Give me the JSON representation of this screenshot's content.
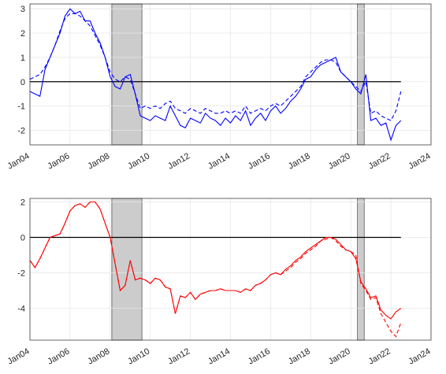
{
  "chart_data": [
    {
      "type": "line",
      "grid": true,
      "reference_line": 0,
      "xlim": [
        "2004-01",
        "2024-01"
      ],
      "xticks": [
        {
          "value": "2004-01",
          "label": "Jan04"
        },
        {
          "value": "2006-01",
          "label": "Jan06"
        },
        {
          "value": "2008-01",
          "label": "Jan08"
        },
        {
          "value": "2010-01",
          "label": "Jan10"
        },
        {
          "value": "2012-01",
          "label": "Jan12"
        },
        {
          "value": "2014-01",
          "label": "Jan14"
        },
        {
          "value": "2016-01",
          "label": "Jan16"
        },
        {
          "value": "2018-01",
          "label": "Jan18"
        },
        {
          "value": "2020-01",
          "label": "Jan20"
        },
        {
          "value": "2022-01",
          "label": "Jan22"
        },
        {
          "value": "2024-01",
          "label": "Jan24"
        }
      ],
      "ylim": [
        -2.6,
        3.2
      ],
      "yticks": [
        -2,
        -1,
        0,
        1,
        2,
        3
      ],
      "shaded": [
        {
          "start": "2008-02",
          "end": "2009-08"
        },
        {
          "start": "2020-05",
          "end": "2020-09"
        }
      ],
      "x": [
        "2004-01",
        "2004-04",
        "2004-07",
        "2004-10",
        "2005-01",
        "2005-04",
        "2005-07",
        "2005-10",
        "2006-01",
        "2006-04",
        "2006-07",
        "2006-10",
        "2007-01",
        "2007-04",
        "2007-07",
        "2007-10",
        "2008-01",
        "2008-04",
        "2008-07",
        "2008-10",
        "2009-01",
        "2009-04",
        "2009-07",
        "2009-10",
        "2010-01",
        "2010-04",
        "2010-07",
        "2010-10",
        "2011-01",
        "2011-04",
        "2011-07",
        "2011-10",
        "2012-01",
        "2012-04",
        "2012-07",
        "2012-10",
        "2013-01",
        "2013-04",
        "2013-07",
        "2013-10",
        "2014-01",
        "2014-04",
        "2014-07",
        "2014-10",
        "2015-01",
        "2015-04",
        "2015-07",
        "2015-10",
        "2016-01",
        "2016-04",
        "2016-07",
        "2016-10",
        "2017-01",
        "2017-04",
        "2017-07",
        "2017-10",
        "2018-01",
        "2018-04",
        "2018-07",
        "2018-10",
        "2019-01",
        "2019-04",
        "2019-07",
        "2019-10",
        "2020-01",
        "2020-04",
        "2020-07",
        "2020-10",
        "2021-01",
        "2021-04",
        "2021-07",
        "2021-10",
        "2022-01",
        "2022-04",
        "2022-07"
      ],
      "series": [
        {
          "color": "#0000ff",
          "style": "solid",
          "values": [
            -0.4,
            -0.5,
            -0.6,
            0.5,
            1.0,
            1.5,
            2.0,
            2.7,
            3.0,
            2.8,
            2.9,
            2.5,
            2.5,
            2.0,
            1.6,
            1.0,
            0.2,
            -0.2,
            -0.3,
            0.2,
            0.3,
            -0.5,
            -1.4,
            -1.5,
            -1.6,
            -1.4,
            -1.5,
            -1.6,
            -1.0,
            -1.4,
            -1.8,
            -1.9,
            -1.5,
            -1.6,
            -1.7,
            -1.3,
            -1.5,
            -1.6,
            -1.8,
            -1.5,
            -1.7,
            -1.4,
            -1.6,
            -1.2,
            -1.8,
            -1.5,
            -1.3,
            -1.6,
            -1.2,
            -1.0,
            -1.3,
            -1.1,
            -0.8,
            -0.6,
            -0.3,
            0.1,
            0.2,
            0.5,
            0.7,
            0.8,
            0.9,
            1.0,
            0.4,
            0.2,
            0.0,
            -0.3,
            -0.5,
            0.3,
            -1.6,
            -1.5,
            -1.8,
            -1.7,
            -2.4,
            -1.8,
            -1.6
          ]
        },
        {
          "color": "#0000ff",
          "style": "dashed",
          "values": [
            0.1,
            0.2,
            0.3,
            0.6,
            1.0,
            1.5,
            2.1,
            2.6,
            2.8,
            2.8,
            2.7,
            2.5,
            2.3,
            1.9,
            1.5,
            1.0,
            0.4,
            0.1,
            0.0,
            0.2,
            0.1,
            -0.5,
            -1.1,
            -1.0,
            -1.1,
            -1.0,
            -1.1,
            -0.9,
            -0.8,
            -1.1,
            -1.2,
            -1.3,
            -1.1,
            -1.2,
            -1.3,
            -1.1,
            -1.2,
            -1.3,
            -1.3,
            -1.2,
            -1.3,
            -1.2,
            -1.3,
            -1.0,
            -1.3,
            -1.2,
            -1.1,
            -1.2,
            -1.0,
            -0.9,
            -1.0,
            -0.8,
            -0.6,
            -0.4,
            -0.2,
            0.2,
            0.4,
            0.6,
            0.8,
            0.9,
            0.9,
            0.8,
            0.4,
            0.2,
            0.0,
            -0.2,
            -0.4,
            0.0,
            -1.3,
            -1.2,
            -1.4,
            -1.5,
            -1.6,
            -1.2,
            -0.4
          ]
        }
      ]
    },
    {
      "type": "line",
      "grid": true,
      "reference_line": 0,
      "xlim": [
        "2004-01",
        "2024-01"
      ],
      "xticks": [
        {
          "value": "2004-01",
          "label": "Jan04"
        },
        {
          "value": "2006-01",
          "label": "Jan06"
        },
        {
          "value": "2008-01",
          "label": "Jan08"
        },
        {
          "value": "2010-01",
          "label": "Jan10"
        },
        {
          "value": "2012-01",
          "label": "Jan12"
        },
        {
          "value": "2014-01",
          "label": "Jan14"
        },
        {
          "value": "2016-01",
          "label": "Jan16"
        },
        {
          "value": "2018-01",
          "label": "Jan18"
        },
        {
          "value": "2020-01",
          "label": "Jan20"
        },
        {
          "value": "2022-01",
          "label": "Jan22"
        },
        {
          "value": "2024-01",
          "label": "Jan24"
        }
      ],
      "ylim": [
        -5.8,
        2.2
      ],
      "yticks": [
        -4,
        -2,
        0,
        2
      ],
      "shaded": [
        {
          "start": "2008-02",
          "end": "2009-08"
        },
        {
          "start": "2020-05",
          "end": "2020-09"
        }
      ],
      "x": [
        "2004-01",
        "2004-04",
        "2004-07",
        "2004-10",
        "2005-01",
        "2005-04",
        "2005-07",
        "2005-10",
        "2006-01",
        "2006-04",
        "2006-07",
        "2006-10",
        "2007-01",
        "2007-04",
        "2007-07",
        "2007-10",
        "2008-01",
        "2008-04",
        "2008-07",
        "2008-10",
        "2009-01",
        "2009-04",
        "2009-07",
        "2009-10",
        "2010-01",
        "2010-04",
        "2010-07",
        "2010-10",
        "2011-01",
        "2011-04",
        "2011-07",
        "2011-10",
        "2012-01",
        "2012-04",
        "2012-07",
        "2012-10",
        "2013-01",
        "2013-04",
        "2013-07",
        "2013-10",
        "2014-01",
        "2014-04",
        "2014-07",
        "2014-10",
        "2015-01",
        "2015-04",
        "2015-07",
        "2015-10",
        "2016-01",
        "2016-04",
        "2016-07",
        "2016-10",
        "2017-01",
        "2017-04",
        "2017-07",
        "2017-10",
        "2018-01",
        "2018-04",
        "2018-07",
        "2018-10",
        "2019-01",
        "2019-04",
        "2019-07",
        "2019-10",
        "2020-01",
        "2020-04",
        "2020-07",
        "2020-10",
        "2021-01",
        "2021-04",
        "2021-07",
        "2021-10",
        "2022-01",
        "2022-04",
        "2022-07"
      ],
      "series": [
        {
          "color": "#ff0000",
          "style": "solid",
          "values": [
            -1.3,
            -1.7,
            -1.2,
            -0.6,
            0.0,
            0.1,
            0.2,
            0.8,
            1.5,
            1.8,
            1.9,
            1.7,
            2.0,
            2.0,
            1.6,
            0.8,
            0.0,
            -1.5,
            -3.0,
            -2.7,
            -1.3,
            -2.4,
            -2.3,
            -2.4,
            -2.6,
            -2.3,
            -2.4,
            -2.8,
            -2.9,
            -4.3,
            -3.3,
            -3.4,
            -3.1,
            -3.5,
            -3.2,
            -3.1,
            -3.0,
            -3.0,
            -2.9,
            -3.0,
            -3.0,
            -3.0,
            -3.1,
            -2.9,
            -3.0,
            -2.7,
            -2.6,
            -2.4,
            -2.1,
            -2.0,
            -2.1,
            -1.8,
            -1.6,
            -1.3,
            -1.1,
            -0.8,
            -0.6,
            -0.4,
            -0.2,
            0.0,
            0.0,
            -0.1,
            -0.4,
            -0.7,
            -0.8,
            -1.2,
            -2.5,
            -2.9,
            -3.4,
            -3.3,
            -4.1,
            -4.4,
            -4.6,
            -4.2,
            -4.0
          ]
        },
        {
          "color": "#ff0000",
          "style": "dashed",
          "values": [
            -1.3,
            -1.7,
            -1.2,
            -0.6,
            0.0,
            0.1,
            0.2,
            0.8,
            1.5,
            1.8,
            1.9,
            1.7,
            2.0,
            2.0,
            1.6,
            0.8,
            0.0,
            -1.5,
            -3.0,
            -2.7,
            -1.3,
            -2.4,
            -2.3,
            -2.4,
            -2.6,
            -2.3,
            -2.4,
            -2.8,
            -2.9,
            -4.3,
            -3.3,
            -3.4,
            -3.1,
            -3.5,
            -3.2,
            -3.1,
            -3.0,
            -3.0,
            -2.9,
            -3.0,
            -3.0,
            -3.0,
            -3.1,
            -2.9,
            -3.0,
            -2.7,
            -2.6,
            -2.4,
            -2.1,
            -2.0,
            -2.1,
            -1.9,
            -1.7,
            -1.4,
            -1.2,
            -0.9,
            -0.7,
            -0.5,
            -0.2,
            -0.1,
            0.0,
            -0.2,
            -0.5,
            -0.7,
            -0.8,
            -1.0,
            -2.6,
            -3.0,
            -3.5,
            -3.4,
            -4.3,
            -4.8,
            -5.3,
            -5.6,
            -4.8
          ]
        }
      ]
    }
  ]
}
